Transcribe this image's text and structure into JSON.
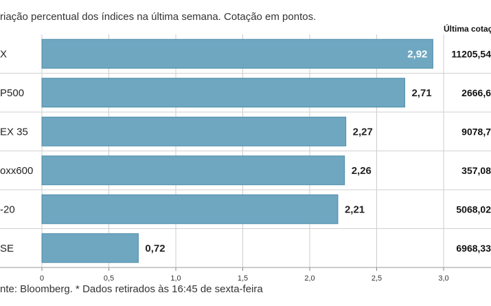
{
  "header": {
    "subtitle": "riação percentual dos índices na última semana. Cotação em pontos.",
    "quote_column": "Última cotação"
  },
  "footer": {
    "source": "nte: Bloomberg.  * Dados retirados às 16:45 de sexta-feira"
  },
  "colors": {
    "bar": "#6fa7c1",
    "bar_border": "#4d8ba8",
    "grid": "#cccccc",
    "separator": "#d0d0d0"
  },
  "chart_data": {
    "type": "bar",
    "orientation": "horizontal",
    "categories": [
      "X",
      "P500",
      "EX 35",
      "oxx600",
      "-20",
      "SE"
    ],
    "values": [
      2.92,
      2.71,
      2.27,
      2.26,
      2.21,
      0.72
    ],
    "value_labels": [
      "2,92",
      "2,71",
      "2,27",
      "2,26",
      "2,21",
      "0,72"
    ],
    "quotes": [
      "11205,54",
      "2666,6",
      "9078,7",
      "357,08",
      "5068,02",
      "6968,33"
    ],
    "xlim": [
      0,
      3.0
    ],
    "xticks": [
      0,
      0.5,
      1.0,
      1.5,
      2.0,
      2.5,
      3.0
    ],
    "xtick_labels": [
      "0",
      "0,5",
      "1,0",
      "1,5",
      "2,0",
      "2,5",
      "3,0"
    ],
    "grid": true
  }
}
